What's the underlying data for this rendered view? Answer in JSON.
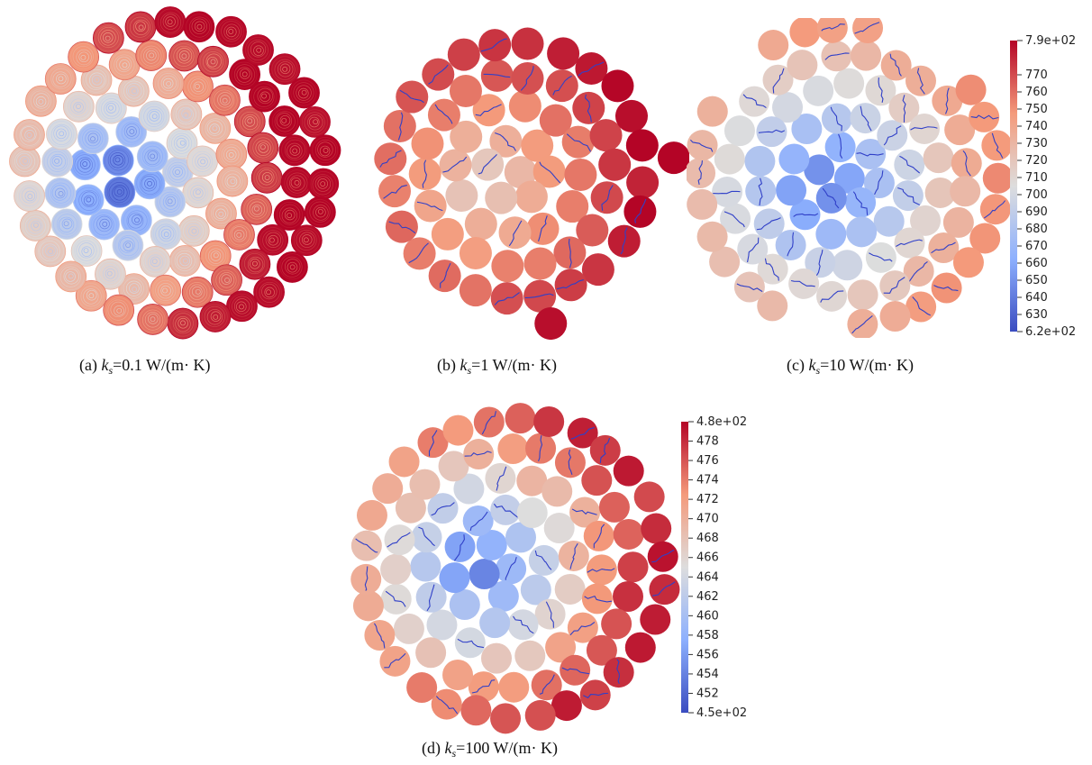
{
  "panels": [
    {
      "id": "a",
      "prefix": "(a)",
      "symbol": "k",
      "sub": "s",
      "value_text": "=0.1 W/(m· K)",
      "style": "contour"
    },
    {
      "id": "b",
      "prefix": "(b)",
      "symbol": "k",
      "sub": "s",
      "value_text": "=1 W/(m· K)",
      "style": "warm"
    },
    {
      "id": "c",
      "prefix": "(c)",
      "symbol": "k",
      "sub": "s",
      "value_text": "=10 W/(m· K)",
      "style": "grey"
    },
    {
      "id": "d",
      "prefix": "(d)",
      "symbol": "k",
      "sub": "s",
      "value_text": "=100 W/(m· K)",
      "style": "mixed"
    }
  ],
  "colorbar_top": {
    "max_label": "7.9e+02",
    "min_label": "6.2e+02",
    "ticks": [
      "770",
      "760",
      "750",
      "740",
      "730",
      "720",
      "710",
      "700",
      "690",
      "680",
      "670",
      "660",
      "650",
      "640",
      "630"
    ],
    "range": [
      620,
      790
    ]
  },
  "colorbar_bottom": {
    "max_label": "4.8e+02",
    "min_label": "4.5e+02",
    "ticks": [
      "478",
      "476",
      "474",
      "472",
      "470",
      "468",
      "466",
      "464",
      "462",
      "460",
      "458",
      "456",
      "454",
      "452"
    ],
    "range": [
      450,
      480
    ]
  },
  "colors": {
    "cold": "#3a4cc0",
    "neutral": "#dddddd",
    "hot": "#b40426",
    "contour_blue": "#3040c8"
  }
}
